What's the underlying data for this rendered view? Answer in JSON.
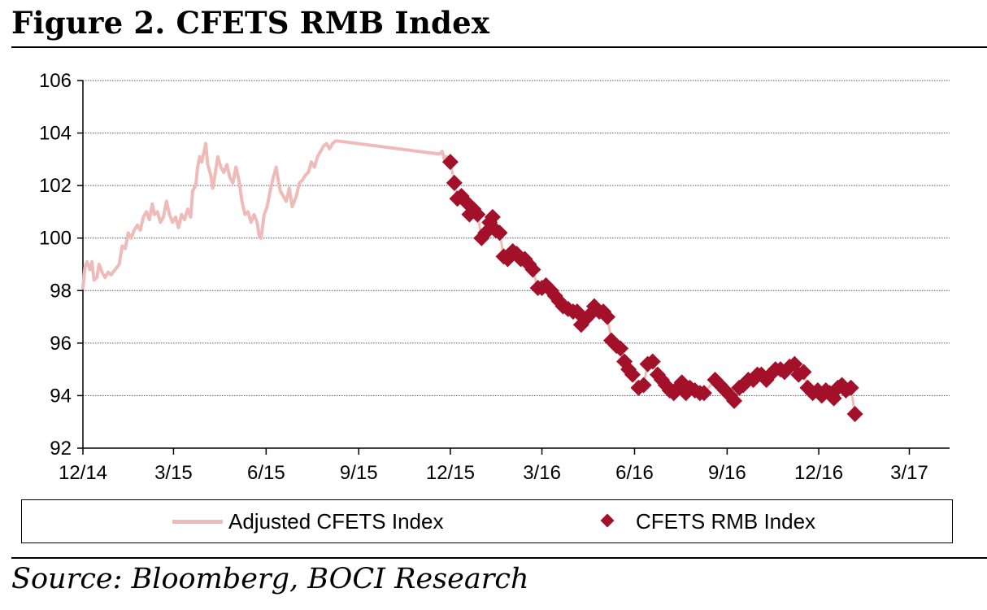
{
  "figure": {
    "title": "Figure 2. CFETS RMB Index",
    "source": "Source: Bloomberg, BOCI Research"
  },
  "chart_data": {
    "type": "line",
    "title": "Figure 2. CFETS RMB Index",
    "xlabel": "",
    "ylabel": "",
    "ylim": [
      92,
      106
    ],
    "yticks": [
      92,
      94,
      96,
      98,
      100,
      102,
      104,
      106
    ],
    "xlim": [
      "2014-12-01",
      "2017-04-10"
    ],
    "xticks": [
      {
        "label": "12/14",
        "date": "2014-12-01"
      },
      {
        "label": "3/15",
        "date": "2015-03-01"
      },
      {
        "label": "6/15",
        "date": "2015-06-01"
      },
      {
        "label": "9/15",
        "date": "2015-09-01"
      },
      {
        "label": "12/15",
        "date": "2015-12-01"
      },
      {
        "label": "3/16",
        "date": "2016-03-01"
      },
      {
        "label": "6/16",
        "date": "2016-06-01"
      },
      {
        "label": "9/16",
        "date": "2016-09-01"
      },
      {
        "label": "12/16",
        "date": "2016-12-01"
      },
      {
        "label": "3/17",
        "date": "2017-03-01"
      }
    ],
    "grid": "horizontal-dotted",
    "legend_position": "bottom",
    "series": [
      {
        "name": "Adjusted CFETS Index",
        "style": "line",
        "color": "#eebbb9",
        "points": [
          [
            "2014-12-01",
            98.1
          ],
          [
            "2014-12-03",
            98.9
          ],
          [
            "2014-12-05",
            99.1
          ],
          [
            "2014-12-08",
            98.8
          ],
          [
            "2014-12-10",
            99.1
          ],
          [
            "2014-12-12",
            98.4
          ],
          [
            "2014-12-15",
            98.5
          ],
          [
            "2014-12-17",
            99.0
          ],
          [
            "2014-12-20",
            98.7
          ],
          [
            "2014-12-23",
            98.5
          ],
          [
            "2014-12-26",
            98.7
          ],
          [
            "2014-12-29",
            98.6
          ],
          [
            "2015-01-02",
            98.8
          ],
          [
            "2015-01-06",
            99.0
          ],
          [
            "2015-01-09",
            99.7
          ],
          [
            "2015-01-12",
            99.6
          ],
          [
            "2015-01-15",
            100.2
          ],
          [
            "2015-01-18",
            100.0
          ],
          [
            "2015-01-21",
            100.3
          ],
          [
            "2015-01-24",
            100.5
          ],
          [
            "2015-01-27",
            100.3
          ],
          [
            "2015-01-30",
            100.8
          ],
          [
            "2015-02-02",
            101.0
          ],
          [
            "2015-02-05",
            100.7
          ],
          [
            "2015-02-08",
            101.3
          ],
          [
            "2015-02-10",
            100.9
          ],
          [
            "2015-02-13",
            101.0
          ],
          [
            "2015-02-16",
            100.6
          ],
          [
            "2015-02-19",
            100.8
          ],
          [
            "2015-02-22",
            101.4
          ],
          [
            "2015-02-25",
            100.9
          ],
          [
            "2015-02-28",
            100.6
          ],
          [
            "2015-03-03",
            100.8
          ],
          [
            "2015-03-06",
            100.4
          ],
          [
            "2015-03-09",
            100.9
          ],
          [
            "2015-03-12",
            100.7
          ],
          [
            "2015-03-15",
            101.1
          ],
          [
            "2015-03-18",
            100.8
          ],
          [
            "2015-03-20",
            101.8
          ],
          [
            "2015-03-23",
            102.0
          ],
          [
            "2015-03-25",
            102.7
          ],
          [
            "2015-03-27",
            103.1
          ],
          [
            "2015-03-29",
            102.9
          ],
          [
            "2015-04-01",
            103.4
          ],
          [
            "2015-04-02",
            103.6
          ],
          [
            "2015-04-04",
            102.8
          ],
          [
            "2015-04-07",
            102.4
          ],
          [
            "2015-04-09",
            101.9
          ],
          [
            "2015-04-12",
            102.6
          ],
          [
            "2015-04-14",
            103.1
          ],
          [
            "2015-04-17",
            102.7
          ],
          [
            "2015-04-20",
            102.5
          ],
          [
            "2015-04-23",
            102.8
          ],
          [
            "2015-04-26",
            102.3
          ],
          [
            "2015-04-29",
            102.1
          ],
          [
            "2015-05-02",
            102.7
          ],
          [
            "2015-05-05",
            102.2
          ],
          [
            "2015-05-08",
            101.4
          ],
          [
            "2015-05-11",
            100.9
          ],
          [
            "2015-05-14",
            101.0
          ],
          [
            "2015-05-17",
            100.6
          ],
          [
            "2015-05-20",
            100.9
          ],
          [
            "2015-05-23",
            100.6
          ],
          [
            "2015-05-25",
            100.1
          ],
          [
            "2015-05-27",
            100.0
          ],
          [
            "2015-05-30",
            100.9
          ],
          [
            "2015-06-02",
            101.2
          ],
          [
            "2015-06-05",
            101.8
          ],
          [
            "2015-06-08",
            102.3
          ],
          [
            "2015-06-11",
            102.7
          ],
          [
            "2015-06-13",
            102.2
          ],
          [
            "2015-06-15",
            101.8
          ],
          [
            "2015-06-18",
            101.6
          ],
          [
            "2015-06-21",
            101.4
          ],
          [
            "2015-06-24",
            101.9
          ],
          [
            "2015-06-27",
            101.2
          ],
          [
            "2015-07-01",
            101.6
          ],
          [
            "2015-07-04",
            102.1
          ],
          [
            "2015-07-07",
            102.2
          ],
          [
            "2015-07-10",
            102.4
          ],
          [
            "2015-07-13",
            102.5
          ],
          [
            "2015-07-16",
            102.9
          ],
          [
            "2015-07-19",
            102.7
          ],
          [
            "2015-07-22",
            103.1
          ],
          [
            "2015-07-25",
            103.3
          ],
          [
            "2015-07-28",
            103.5
          ],
          [
            "2015-07-31",
            103.6
          ],
          [
            "2015-08-03",
            103.4
          ],
          [
            "2015-08-06",
            103.6
          ],
          [
            "2015-08-09",
            103.7
          ],
          [
            "2015-08-11",
            103.7
          ],
          [
            "2015-11-20",
            103.2
          ],
          [
            "2015-11-23",
            103.3
          ],
          [
            "2015-11-25",
            103.0
          ],
          [
            "2015-11-27",
            103.1
          ],
          [
            "2015-12-01",
            102.9
          ]
        ]
      },
      {
        "name": "CFETS RMB Index",
        "style": "diamond",
        "color": "#a3102a",
        "points": [
          [
            "2015-12-01",
            102.9
          ],
          [
            "2015-12-05",
            102.1
          ],
          [
            "2015-12-08",
            101.5
          ],
          [
            "2015-12-12",
            101.6
          ],
          [
            "2015-12-16",
            101.4
          ],
          [
            "2015-12-20",
            100.9
          ],
          [
            "2015-12-24",
            101.1
          ],
          [
            "2015-12-28",
            100.9
          ],
          [
            "2016-01-01",
            100.0
          ],
          [
            "2016-01-05",
            100.2
          ],
          [
            "2016-01-09",
            100.6
          ],
          [
            "2016-01-12",
            100.8
          ],
          [
            "2016-01-15",
            100.3
          ],
          [
            "2016-01-19",
            100.2
          ],
          [
            "2016-01-23",
            99.3
          ],
          [
            "2016-01-27",
            99.2
          ],
          [
            "2016-02-01",
            99.5
          ],
          [
            "2016-02-05",
            99.4
          ],
          [
            "2016-02-09",
            99.2
          ],
          [
            "2016-02-13",
            99.2
          ],
          [
            "2016-02-17",
            99.0
          ],
          [
            "2016-02-21",
            98.8
          ],
          [
            "2016-02-26",
            98.1
          ],
          [
            "2016-03-01",
            98.1
          ],
          [
            "2016-03-05",
            98.2
          ],
          [
            "2016-03-10",
            98.0
          ],
          [
            "2016-03-14",
            97.8
          ],
          [
            "2016-03-18",
            97.6
          ],
          [
            "2016-03-22",
            97.4
          ],
          [
            "2016-03-27",
            97.3
          ],
          [
            "2016-04-01",
            97.2
          ],
          [
            "2016-04-05",
            97.2
          ],
          [
            "2016-04-09",
            96.7
          ],
          [
            "2016-04-13",
            96.9
          ],
          [
            "2016-04-18",
            97.1
          ],
          [
            "2016-04-22",
            97.4
          ],
          [
            "2016-04-27",
            97.2
          ],
          [
            "2016-05-01",
            97.2
          ],
          [
            "2016-05-05",
            97.0
          ],
          [
            "2016-05-09",
            96.1
          ],
          [
            "2016-05-14",
            95.9
          ],
          [
            "2016-05-18",
            95.8
          ],
          [
            "2016-05-22",
            95.3
          ],
          [
            "2016-05-26",
            95.0
          ],
          [
            "2016-05-30",
            94.8
          ],
          [
            "2016-06-05",
            94.3
          ],
          [
            "2016-06-10",
            94.4
          ],
          [
            "2016-06-14",
            95.2
          ],
          [
            "2016-06-19",
            95.3
          ],
          [
            "2016-06-24",
            94.8
          ],
          [
            "2016-06-28",
            94.6
          ],
          [
            "2016-07-02",
            94.4
          ],
          [
            "2016-07-06",
            94.2
          ],
          [
            "2016-07-10",
            94.1
          ],
          [
            "2016-07-14",
            94.3
          ],
          [
            "2016-07-18",
            94.5
          ],
          [
            "2016-07-22",
            94.1
          ],
          [
            "2016-07-26",
            94.3
          ],
          [
            "2016-07-31",
            94.2
          ],
          [
            "2016-08-05",
            94.1
          ],
          [
            "2016-08-09",
            94.1
          ],
          [
            "2016-08-20",
            94.6
          ],
          [
            "2016-08-25",
            94.4
          ],
          [
            "2016-08-30",
            94.2
          ],
          [
            "2016-09-04",
            94.0
          ],
          [
            "2016-09-08",
            93.8
          ],
          [
            "2016-09-13",
            94.3
          ],
          [
            "2016-09-17",
            94.4
          ],
          [
            "2016-09-22",
            94.6
          ],
          [
            "2016-09-27",
            94.6
          ],
          [
            "2016-10-01",
            94.8
          ],
          [
            "2016-10-05",
            94.8
          ],
          [
            "2016-10-10",
            94.6
          ],
          [
            "2016-10-14",
            94.8
          ],
          [
            "2016-10-19",
            95.0
          ],
          [
            "2016-10-24",
            95.0
          ],
          [
            "2016-10-28",
            94.9
          ],
          [
            "2016-11-02",
            95.1
          ],
          [
            "2016-11-07",
            95.2
          ],
          [
            "2016-11-11",
            94.8
          ],
          [
            "2016-11-16",
            94.9
          ],
          [
            "2016-11-20",
            94.3
          ],
          [
            "2016-11-25",
            94.1
          ],
          [
            "2016-11-30",
            94.2
          ],
          [
            "2016-12-04",
            94.0
          ],
          [
            "2016-12-08",
            94.2
          ],
          [
            "2016-12-12",
            94.1
          ],
          [
            "2016-12-16",
            93.9
          ],
          [
            "2016-12-20",
            94.3
          ],
          [
            "2016-12-24",
            94.4
          ],
          [
            "2016-12-28",
            94.2
          ],
          [
            "2017-01-02",
            94.3
          ],
          [
            "2017-01-06",
            93.3
          ]
        ]
      }
    ]
  },
  "legend": {
    "adjusted_label": "Adjusted CFETS Index",
    "cfets_label": "CFETS RMB Index"
  }
}
